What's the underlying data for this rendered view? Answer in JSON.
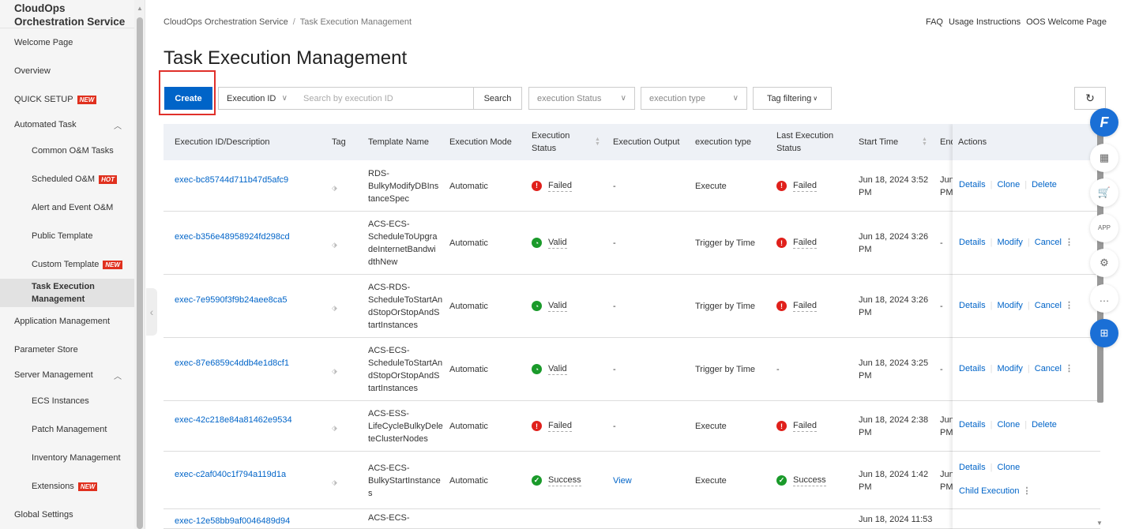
{
  "sidebar": {
    "title": "CloudOps Orchestration Service",
    "items": [
      {
        "label": "Welcome Page",
        "level": 0
      },
      {
        "label": "Overview",
        "level": 0
      },
      {
        "label": "QUICK SETUP",
        "level": 0,
        "badge": "NEW"
      },
      {
        "label": "Automated Task",
        "level": 0,
        "expanded": true
      },
      {
        "label": "Common O&M Tasks",
        "level": 1
      },
      {
        "label": "Scheduled O&M",
        "level": 1,
        "badge": "HOT"
      },
      {
        "label": "Alert and Event O&M",
        "level": 1
      },
      {
        "label": "Public Template",
        "level": 1
      },
      {
        "label": "Custom Template",
        "level": 1,
        "badge": "NEW"
      },
      {
        "label": "Task Execution Management",
        "level": 1,
        "active": true
      },
      {
        "label": "Application Management",
        "level": 0
      },
      {
        "label": "Parameter Store",
        "level": 0
      },
      {
        "label": "Server Management",
        "level": 0,
        "expanded": true
      },
      {
        "label": "ECS Instances",
        "level": 1
      },
      {
        "label": "Patch Management",
        "level": 1
      },
      {
        "label": "Inventory Management",
        "level": 1
      },
      {
        "label": "Extensions",
        "level": 1,
        "badge": "NEW"
      },
      {
        "label": "Global Settings",
        "level": 0
      }
    ]
  },
  "breadcrumb": [
    "CloudOps Orchestration Service",
    "Task Execution Management"
  ],
  "top_links": [
    "FAQ",
    "Usage Instructions",
    "OOS Welcome Page"
  ],
  "page_title": "Task Execution Management",
  "toolbar": {
    "create": "Create",
    "search_field": "Execution ID",
    "search_placeholder": "Search by execution ID",
    "search": "Search",
    "status_placeholder": "execution Status",
    "type_placeholder": "execution type",
    "tag_filter": "Tag filtering"
  },
  "table": {
    "columns": [
      "Execution ID/Description",
      "Tag",
      "Template Name",
      "Execution Mode",
      "Execution Status",
      "Execution Output",
      "execution type",
      "Last Execution Status",
      "Start Time",
      "End",
      "Actions"
    ],
    "rows": [
      {
        "id": "exec-bc85744d711b47d5afc9",
        "template": [
          "RDS-",
          "BulkyModifyDBIns",
          "tanceSpec"
        ],
        "mode": "Automatic",
        "status": "Failed",
        "output": "-",
        "type": "Execute",
        "last": "Failed",
        "start": [
          "Jun 18, 2024 3:52",
          "PM"
        ],
        "end": [
          "Jun",
          "PM"
        ],
        "actions": [
          "Details",
          "Clone",
          "Delete"
        ]
      },
      {
        "id": "exec-b356e48958924fd298cd",
        "template": [
          "ACS-ECS-",
          "ScheduleToUpgra",
          "deInternetBandwi",
          "dthNew"
        ],
        "mode": "Automatic",
        "status": "Valid",
        "output": "-",
        "type": "Trigger by Time",
        "last": "Failed",
        "start": [
          "Jun 18, 2024 3:26",
          "PM"
        ],
        "end": [
          "-"
        ],
        "actions": [
          "Details",
          "Modify",
          "Cancel"
        ],
        "more": true
      },
      {
        "id": "exec-7e9590f3f9b24aee8ca5",
        "template": [
          "ACS-RDS-",
          "ScheduleToStartAn",
          "dStopOrStopAndS",
          "tartInstances"
        ],
        "mode": "Automatic",
        "status": "Valid",
        "output": "-",
        "type": "Trigger by Time",
        "last": "Failed",
        "start": [
          "Jun 18, 2024 3:26",
          "PM"
        ],
        "end": [
          "-"
        ],
        "actions": [
          "Details",
          "Modify",
          "Cancel"
        ],
        "more": true
      },
      {
        "id": "exec-87e6859c4ddb4e1d8cf1",
        "template": [
          "ACS-ECS-",
          "ScheduleToStartAn",
          "dStopOrStopAndS",
          "tartInstances"
        ],
        "mode": "Automatic",
        "status": "Valid",
        "output": "-",
        "type": "Trigger by Time",
        "last": "-",
        "start": [
          "Jun 18, 2024 3:25",
          "PM"
        ],
        "end": [
          "-"
        ],
        "actions": [
          "Details",
          "Modify",
          "Cancel"
        ],
        "more": true
      },
      {
        "id": "exec-42c218e84a81462e9534",
        "template": [
          "ACS-ESS-",
          "LifeCycleBulkyDele",
          "teClusterNodes"
        ],
        "mode": "Automatic",
        "status": "Failed",
        "output": "-",
        "type": "Execute",
        "last": "Failed",
        "start": [
          "Jun 18, 2024 2:38",
          "PM"
        ],
        "end": [
          "Jun",
          "PM"
        ],
        "actions": [
          "Details",
          "Clone",
          "Delete"
        ]
      },
      {
        "id": "exec-c2af040c1f794a119d1a",
        "template": [
          "ACS-ECS-",
          "BulkyStartInstance",
          "s"
        ],
        "mode": "Automatic",
        "status": "Success",
        "output": "View",
        "type": "Execute",
        "last": "Success",
        "start": [
          "Jun 18, 2024 1:42",
          "PM"
        ],
        "end": [
          "Jun",
          "PM"
        ],
        "actions": [
          "Details",
          "Clone"
        ],
        "actions2": "Child Execution",
        "more2": true
      },
      {
        "id": "exec-12e58bb9af0046489d94",
        "template": [
          "ACS-ECS-"
        ],
        "mode": "",
        "status": "",
        "output": "",
        "type": "",
        "last": "",
        "start": [
          "Jun 18, 2024 11:53"
        ],
        "end": [],
        "actions": []
      }
    ]
  },
  "status_colors": {
    "Failed": "#e0201b",
    "Valid": "#1a9a2a",
    "Success": "#1a9a2a"
  },
  "floating_icons": [
    "f-logo-icon",
    "qr-code-icon",
    "cart-icon",
    "app-icon",
    "gear-icon",
    "chat-icon",
    "apps-grid-icon"
  ]
}
